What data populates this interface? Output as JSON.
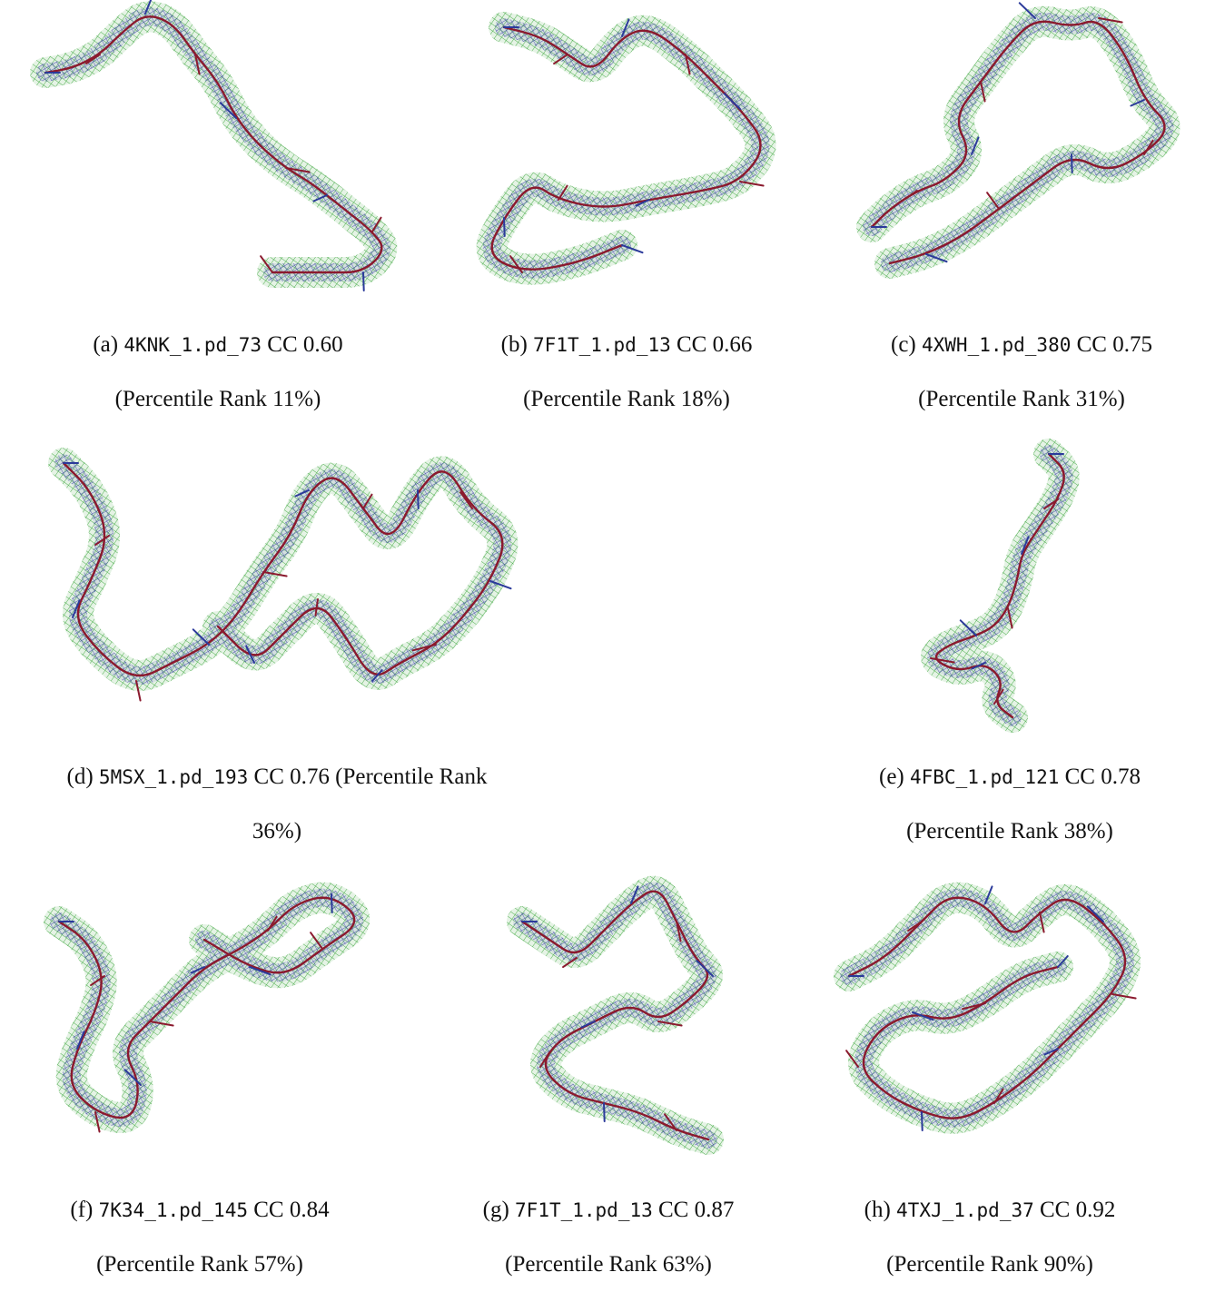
{
  "colors": {
    "density_green": "#2ca02c",
    "density_blue": "#3a3fa8",
    "bond_red": "#8b1a2e",
    "bond_blue": "#2b3a9a"
  },
  "panels": [
    {
      "label": "(a)",
      "id": "4KNK_1.pd_73",
      "cc": "CC 0.60",
      "rank": "(Percentile Rank 11%)"
    },
    {
      "label": "(b)",
      "id": "7F1T_1.pd_13",
      "cc": "CC 0.66",
      "rank": "(Percentile Rank 18%)"
    },
    {
      "label": "(c)",
      "id": "4XWH_1.pd_380",
      "cc": "CC 0.75",
      "rank": "(Percentile Rank 31%)"
    },
    {
      "label": "(d)",
      "id": "5MSX_1.pd_193",
      "cc": "CC 0.76",
      "rank_part1": "(Percentile Rank",
      "rank_part2": "36%)"
    },
    {
      "label": "(e)",
      "id": "4FBC_1.pd_121",
      "cc": "CC 0.78",
      "rank": "(Percentile Rank 38%)"
    },
    {
      "label": "(f)",
      "id": "7K34_1.pd_145",
      "cc": "CC 0.84",
      "rank": "(Percentile Rank 57%)"
    },
    {
      "label": "(g)",
      "id": "7F1T_1.pd_13",
      "cc": "CC 0.87",
      "rank": "(Percentile Rank 63%)"
    },
    {
      "label": "(h)",
      "id": "4TXJ_1.pd_37",
      "cc": "CC 0.92",
      "rank": "(Percentile Rank 90%)"
    }
  ]
}
